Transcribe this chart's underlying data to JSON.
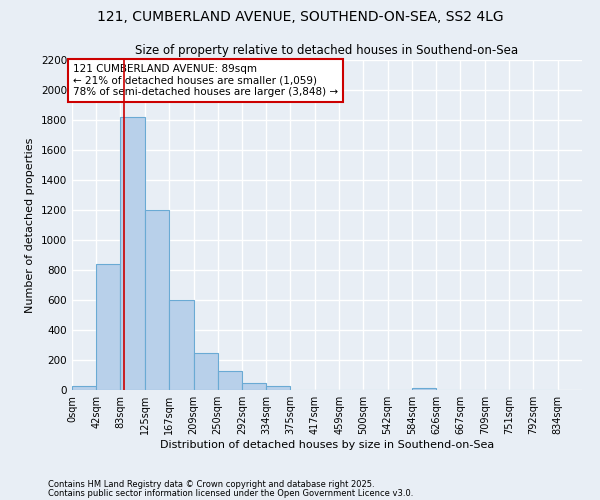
{
  "title1": "121, CUMBERLAND AVENUE, SOUTHEND-ON-SEA, SS2 4LG",
  "title2": "Size of property relative to detached houses in Southend-on-Sea",
  "xlabel": "Distribution of detached houses by size in Southend-on-Sea",
  "ylabel": "Number of detached properties",
  "bar_values": [
    25,
    840,
    1820,
    1200,
    600,
    250,
    125,
    50,
    30,
    0,
    0,
    0,
    0,
    0,
    15,
    0,
    0,
    0,
    0,
    0
  ],
  "bin_edges": [
    0,
    42,
    83,
    125,
    167,
    209,
    250,
    292,
    334,
    375,
    417,
    459,
    500,
    542,
    584,
    626,
    667,
    709,
    751,
    792,
    834
  ],
  "tick_labels": [
    "0sqm",
    "42sqm",
    "83sqm",
    "125sqm",
    "167sqm",
    "209sqm",
    "250sqm",
    "292sqm",
    "334sqm",
    "375sqm",
    "417sqm",
    "459sqm",
    "500sqm",
    "542sqm",
    "584sqm",
    "626sqm",
    "667sqm",
    "709sqm",
    "751sqm",
    "792sqm",
    "834sqm"
  ],
  "bar_color": "#b8d0ea",
  "bar_edge_color": "#6aaad4",
  "red_line_x": 89,
  "annotation_text": "121 CUMBERLAND AVENUE: 89sqm\n← 21% of detached houses are smaller (1,059)\n78% of semi-detached houses are larger (3,848) →",
  "annotation_box_color": "#ffffff",
  "annotation_border_color": "#cc0000",
  "ylim": [
    0,
    2200
  ],
  "yticks": [
    0,
    200,
    400,
    600,
    800,
    1000,
    1200,
    1400,
    1600,
    1800,
    2000,
    2200
  ],
  "bg_color": "#e8eef5",
  "grid_color": "#ffffff",
  "footnote1": "Contains HM Land Registry data © Crown copyright and database right 2025.",
  "footnote2": "Contains public sector information licensed under the Open Government Licence v3.0."
}
